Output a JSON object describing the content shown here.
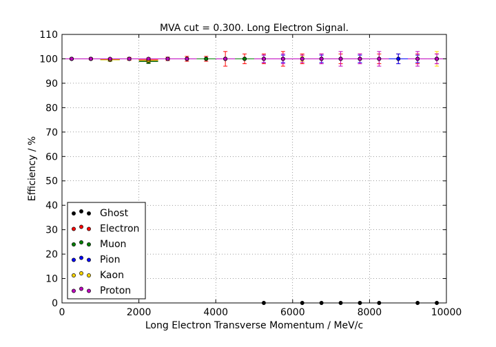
{
  "chart_data": {
    "type": "scatter",
    "title": "MVA cut = 0.300. Long Electron Signal.",
    "xlabel": "Long Electron Transverse Momentum / MeV/c",
    "ylabel": "Efficiency / %",
    "xlim": [
      0,
      10000
    ],
    "ylim": [
      0,
      110
    ],
    "xticks": [
      0,
      2000,
      4000,
      6000,
      8000,
      10000
    ],
    "yticks": [
      0,
      10,
      20,
      30,
      40,
      50,
      60,
      70,
      80,
      90,
      100,
      110
    ],
    "xtick_labels": [
      "0",
      "2000",
      "4000",
      "6000",
      "8000",
      "10000"
    ],
    "ytick_labels": [
      "0",
      "10",
      "20",
      "30",
      "40",
      "50",
      "60",
      "70",
      "80",
      "90",
      "100",
      "110"
    ],
    "grid": true,
    "legend_position": "lower-left",
    "series": [
      {
        "name": "Ghost",
        "color": "#000000",
        "points": [
          {
            "x": 250,
            "y": 100,
            "err": 0
          },
          {
            "x": 750,
            "y": 100,
            "err": 0
          },
          {
            "x": 1250,
            "y": 99.6,
            "err": 0.6
          },
          {
            "x": 1750,
            "y": 100,
            "err": 0
          },
          {
            "x": 2250,
            "y": 99.2,
            "err": 0.8
          },
          {
            "x": 2750,
            "y": 100,
            "err": 0
          },
          {
            "x": 3250,
            "y": 100,
            "err": 0
          },
          {
            "x": 3750,
            "y": 100,
            "err": 0
          },
          {
            "x": 4250,
            "y": 100,
            "err": 0
          },
          {
            "x": 4750,
            "y": 100,
            "err": 0
          },
          {
            "x": 5250,
            "y": 0,
            "err": 0
          },
          {
            "x": 6250,
            "y": 0,
            "err": 0
          },
          {
            "x": 6750,
            "y": 0,
            "err": 0
          },
          {
            "x": 7250,
            "y": 0,
            "err": 0
          },
          {
            "x": 7750,
            "y": 0,
            "err": 0
          },
          {
            "x": 8250,
            "y": 0,
            "err": 0
          },
          {
            "x": 9250,
            "y": 0,
            "err": 0
          },
          {
            "x": 9750,
            "y": 0,
            "err": 0
          }
        ]
      },
      {
        "name": "Electron",
        "color": "#ff0000",
        "points": [
          {
            "x": 250,
            "y": 100,
            "err": 0.3
          },
          {
            "x": 750,
            "y": 100,
            "err": 0.4
          },
          {
            "x": 1250,
            "y": 99.7,
            "err": 0.6
          },
          {
            "x": 1750,
            "y": 100,
            "err": 0.6
          },
          {
            "x": 2250,
            "y": 99.6,
            "err": 0.8
          },
          {
            "x": 2750,
            "y": 100,
            "err": 0.7
          },
          {
            "x": 3250,
            "y": 100,
            "err": 1.0
          },
          {
            "x": 3750,
            "y": 100,
            "err": 1.0
          },
          {
            "x": 4250,
            "y": 100,
            "err": 3.0
          },
          {
            "x": 4750,
            "y": 100,
            "err": 2.0
          },
          {
            "x": 5250,
            "y": 100,
            "err": 2.0
          },
          {
            "x": 5750,
            "y": 100,
            "err": 3.0
          },
          {
            "x": 6250,
            "y": 100,
            "err": 2.0
          },
          {
            "x": 6750,
            "y": 100,
            "err": 2.0
          },
          {
            "x": 7250,
            "y": 100,
            "err": 2.0
          },
          {
            "x": 7750,
            "y": 100,
            "err": 2.0
          },
          {
            "x": 8250,
            "y": 100,
            "err": 2.0
          },
          {
            "x": 8750,
            "y": 100,
            "err": 2.0
          },
          {
            "x": 9250,
            "y": 100,
            "err": 2.0
          },
          {
            "x": 9750,
            "y": 100,
            "err": 2.0
          }
        ]
      },
      {
        "name": "Muon",
        "color": "#007f00",
        "points": [
          {
            "x": 250,
            "y": 100,
            "err": 0
          },
          {
            "x": 750,
            "y": 100,
            "err": 0
          },
          {
            "x": 1250,
            "y": 99.6,
            "err": 0.6
          },
          {
            "x": 1750,
            "y": 100,
            "err": 0
          },
          {
            "x": 2250,
            "y": 98.9,
            "err": 0.8
          },
          {
            "x": 2750,
            "y": 100,
            "err": 0
          },
          {
            "x": 3250,
            "y": 100,
            "err": 0
          },
          {
            "x": 3750,
            "y": 100,
            "err": 0
          },
          {
            "x": 4250,
            "y": 100,
            "err": 0
          },
          {
            "x": 4750,
            "y": 100,
            "err": 0
          },
          {
            "x": 5750,
            "y": 100,
            "err": 0
          },
          {
            "x": 6250,
            "y": 100,
            "err": 0
          },
          {
            "x": 6750,
            "y": 100,
            "err": 0
          },
          {
            "x": 7250,
            "y": 100,
            "err": 0
          },
          {
            "x": 7750,
            "y": 100,
            "err": 0
          },
          {
            "x": 8250,
            "y": 100,
            "err": 0
          },
          {
            "x": 9750,
            "y": 100,
            "err": 0
          }
        ]
      },
      {
        "name": "Pion",
        "color": "#0000ff",
        "points": [
          {
            "x": 250,
            "y": 100,
            "err": 0
          },
          {
            "x": 750,
            "y": 100,
            "err": 0
          },
          {
            "x": 1750,
            "y": 100,
            "err": 0
          },
          {
            "x": 2750,
            "y": 100,
            "err": 0
          },
          {
            "x": 3250,
            "y": 100,
            "err": 0
          },
          {
            "x": 4250,
            "y": 100,
            "err": 0
          },
          {
            "x": 5250,
            "y": 100,
            "err": 1.5
          },
          {
            "x": 5750,
            "y": 100,
            "err": 1.5
          },
          {
            "x": 6750,
            "y": 100,
            "err": 1.5
          },
          {
            "x": 7750,
            "y": 100,
            "err": 1.5
          },
          {
            "x": 8750,
            "y": 100,
            "err": 2.0
          },
          {
            "x": 9250,
            "y": 100,
            "err": 1.5
          }
        ]
      },
      {
        "name": "Kaon",
        "color": "#ffd700",
        "points": [
          {
            "x": 250,
            "y": 100,
            "err": 0
          },
          {
            "x": 750,
            "y": 100,
            "err": 0
          },
          {
            "x": 1250,
            "y": 99.6,
            "err": 0.5
          },
          {
            "x": 2250,
            "y": 99.4,
            "err": 0.7
          },
          {
            "x": 3250,
            "y": 100,
            "err": 0
          },
          {
            "x": 6250,
            "y": 100,
            "err": 1.0
          },
          {
            "x": 9750,
            "y": 100,
            "err": 3.0
          }
        ]
      },
      {
        "name": "Proton",
        "color": "#bf00bf",
        "points": [
          {
            "x": 250,
            "y": 100,
            "err": 0
          },
          {
            "x": 750,
            "y": 100,
            "err": 0
          },
          {
            "x": 1250,
            "y": 100,
            "err": 0
          },
          {
            "x": 1750,
            "y": 100,
            "err": 0
          },
          {
            "x": 2250,
            "y": 100,
            "err": 0
          },
          {
            "x": 2750,
            "y": 100,
            "err": 0
          },
          {
            "x": 3250,
            "y": 100,
            "err": 0
          },
          {
            "x": 4250,
            "y": 100,
            "err": 0
          },
          {
            "x": 5250,
            "y": 100,
            "err": 1.5
          },
          {
            "x": 5750,
            "y": 100,
            "err": 2.0
          },
          {
            "x": 6250,
            "y": 100,
            "err": 1.5
          },
          {
            "x": 6750,
            "y": 100,
            "err": 2.0
          },
          {
            "x": 7250,
            "y": 100,
            "err": 3.0
          },
          {
            "x": 7750,
            "y": 100,
            "err": 2.0
          },
          {
            "x": 8250,
            "y": 100,
            "err": 3.0
          },
          {
            "x": 9250,
            "y": 100,
            "err": 3.0
          },
          {
            "x": 9750,
            "y": 100,
            "err": 2.0
          }
        ]
      }
    ]
  }
}
